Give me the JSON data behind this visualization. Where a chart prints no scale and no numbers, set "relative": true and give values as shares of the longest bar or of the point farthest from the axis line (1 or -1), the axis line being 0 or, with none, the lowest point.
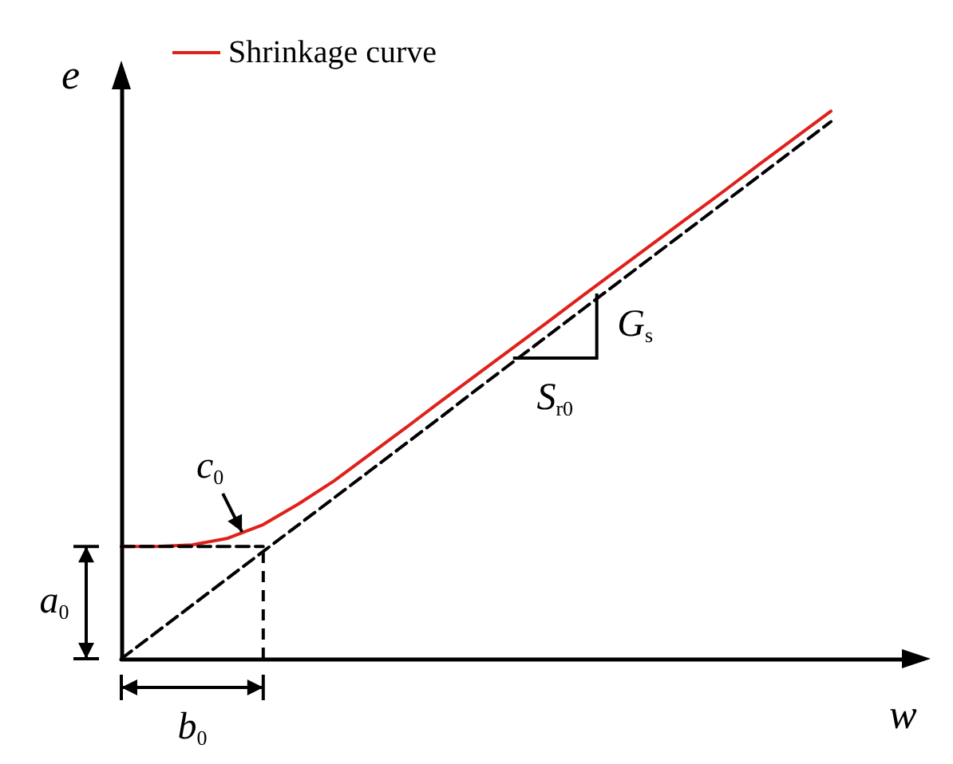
{
  "chart_data": {
    "type": "line",
    "relative": true,
    "xlabel": "w",
    "ylabel": "e",
    "legend": "top left",
    "grid": false,
    "marker": "none",
    "categories": [
      null,
      null,
      null,
      null,
      null,
      null,
      null,
      null,
      null,
      null,
      null,
      null,
      null,
      null,
      null,
      null,
      null,
      null,
      null,
      null,
      null,
      null,
      null
    ],
    "series": [
      {
        "name": "Shrinkage curve",
        "color": "#e0201b",
        "line_style": "solid",
        "values": [
          0.205,
          0.205,
          0.208,
          0.22,
          0.245,
          0.283,
          0.325,
          0.373,
          0.421,
          0.47,
          0.518,
          0.566,
          0.614,
          0.663,
          0.711,
          0.759,
          0.807,
          0.855,
          0.904,
          0.952,
          1.0,
          null,
          null
        ]
      },
      {
        "color": "#000000",
        "line_style": "dashed",
        "values": [
          0,
          0.049,
          0.098,
          0.147,
          0.196,
          0.245,
          0.294,
          0.343,
          0.392,
          0.441,
          0.491,
          0.54,
          0.589,
          0.638,
          0.687,
          0.736,
          0.785,
          0.834,
          0.883,
          0.932,
          0.981,
          null,
          null
        ]
      },
      {
        "color": "#000000",
        "line_style": "dashed",
        "values": [
          0.205,
          0.205,
          0.205,
          0.205,
          0.205,
          null,
          null,
          null,
          null,
          null,
          null,
          null,
          null,
          null,
          null,
          null,
          null,
          null,
          null,
          null,
          null,
          null,
          null
        ]
      }
    ],
    "annotations": [
      "a$_{0}$",
      "b$_{0}$",
      "c$_{0}$",
      "G$_{s}$",
      "S$_{r0}$"
    ]
  }
}
